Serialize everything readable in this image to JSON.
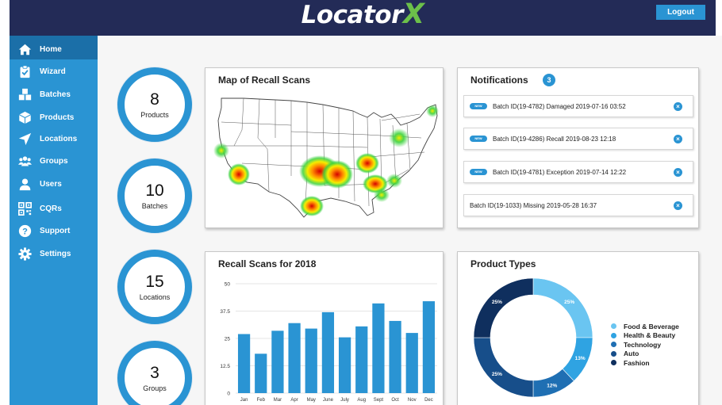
{
  "header": {
    "logo_main": "Locator",
    "logo_x": "X",
    "logout_label": "Logout"
  },
  "sidebar": {
    "items": [
      {
        "label": "Home",
        "icon": "home-icon"
      },
      {
        "label": "Wizard",
        "icon": "clipboard-check-icon"
      },
      {
        "label": "Batches",
        "icon": "boxes-icon"
      },
      {
        "label": "Products",
        "icon": "box-icon"
      },
      {
        "label": "Locations",
        "icon": "location-arrow-icon"
      },
      {
        "label": "Groups",
        "icon": "users-group-icon"
      },
      {
        "label": "Users",
        "icon": "user-icon"
      },
      {
        "label": "CQRs",
        "icon": "qr-code-icon"
      },
      {
        "label": "Support",
        "icon": "question-icon"
      },
      {
        "label": "Settings",
        "icon": "gear-icon"
      }
    ]
  },
  "stats": [
    {
      "value": "8",
      "label": "Products"
    },
    {
      "value": "10",
      "label": "Batches"
    },
    {
      "value": "15",
      "label": "Locations"
    },
    {
      "value": "3",
      "label": "Groups"
    }
  ],
  "map_card": {
    "title": "Map of Recall Scans"
  },
  "notifications": {
    "title": "Notifications",
    "count": "3",
    "new_label": "NEW",
    "items": [
      {
        "text": "Batch ID(19-4782) Damaged 2019-07-16 03:52",
        "is_new": true
      },
      {
        "text": "Batch ID(19-4286) Recall 2019-08-23 12:18",
        "is_new": true
      },
      {
        "text": "Batch ID(19-4781) Exception  2019-07-14 12:22",
        "is_new": true
      },
      {
        "text": "Batch ID(19-1033) Missing 2019-05-28 16:37",
        "is_new": false
      }
    ]
  },
  "recall_card": {
    "title": "Recall Scans for 2018"
  },
  "product_card": {
    "title": "Product Types"
  },
  "colors": {
    "accent": "#2a94d3",
    "header_bg": "#232b57",
    "sidebar_active": "#1b6fa8",
    "logo_x": "#6cc04a"
  },
  "chart_data": [
    {
      "type": "bar",
      "title": "Recall Scans for 2018",
      "categories": [
        "Jan",
        "Feb",
        "Mar",
        "Apr",
        "May",
        "June",
        "July",
        "Aug",
        "Sept",
        "Oct",
        "Nov",
        "Dec"
      ],
      "values": [
        27,
        18,
        28.5,
        32,
        29.5,
        37,
        25.5,
        30.5,
        41,
        33,
        27.5,
        42
      ],
      "yticks": [
        0,
        12.5,
        25,
        37.5,
        50
      ],
      "ylim": [
        0,
        50
      ],
      "grid": true,
      "color": "#2a94d3"
    },
    {
      "type": "pie",
      "title": "Product Types",
      "donut": true,
      "slices": [
        {
          "name": "Food & Beverage",
          "value": 25,
          "label": "25%",
          "color": "#6ac5f1"
        },
        {
          "name": "Health & Beauty",
          "value": 13,
          "label": "13%",
          "color": "#2fa3e2"
        },
        {
          "name": "Technology",
          "value": 12,
          "label": "12%",
          "color": "#1f6fb3"
        },
        {
          "name": "Auto",
          "value": 25,
          "label": "25%",
          "color": "#174e8a"
        },
        {
          "name": "Fashion",
          "value": 25,
          "label": "25%",
          "color": "#0f2f5e"
        }
      ],
      "legend_position": "right"
    }
  ]
}
